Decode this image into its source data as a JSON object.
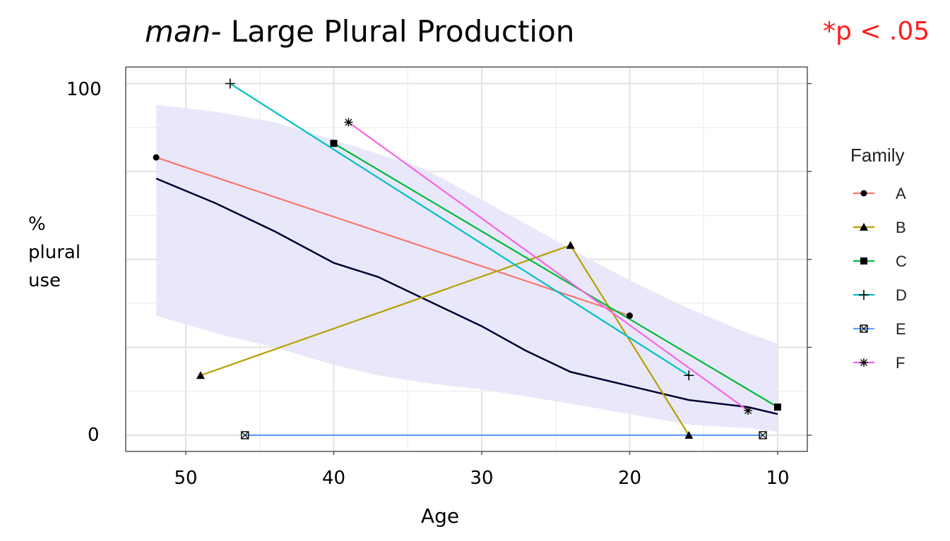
{
  "chart_data": {
    "type": "line",
    "title_italic": "man-",
    "title_rest": " Large Plural Production",
    "note": "*p < .05",
    "xlabel": "Age",
    "ylabel_lines": [
      "%",
      "plural",
      "use"
    ],
    "xlim": [
      54,
      8
    ],
    "ylim": [
      -5,
      105
    ],
    "x_ticks": [
      50,
      40,
      30,
      20,
      10
    ],
    "x_tick_labels": [
      "50",
      "40",
      "30",
      "20",
      "10"
    ],
    "y_tick_labels": [
      {
        "label": "100",
        "value": 100
      },
      {
        "label": "0",
        "value": 0
      }
    ],
    "y_grid_major": [
      0,
      25,
      50,
      75,
      100
    ],
    "y_grid_minor": [
      12.5,
      37.5,
      62.5,
      87.5
    ],
    "x_grid_minor": [
      45,
      35,
      25,
      15
    ],
    "grid": true,
    "legend": {
      "title": "Family",
      "placement": "right"
    },
    "series": [
      {
        "name": "A",
        "color": "#f8766d",
        "marker": "circle",
        "x": [
          52,
          20
        ],
        "y": [
          79,
          34
        ]
      },
      {
        "name": "B",
        "color": "#b79f00",
        "marker": "triangle",
        "x": [
          49,
          24,
          16
        ],
        "y": [
          17,
          54,
          0
        ]
      },
      {
        "name": "C",
        "color": "#00ba38",
        "marker": "square",
        "x": [
          40,
          10
        ],
        "y": [
          83,
          8
        ]
      },
      {
        "name": "D",
        "color": "#00bfc4",
        "marker": "plus",
        "x": [
          47,
          16
        ],
        "y": [
          100,
          17
        ]
      },
      {
        "name": "E",
        "color": "#619cff",
        "marker": "boxcross",
        "x": [
          46,
          11
        ],
        "y": [
          0,
          0
        ]
      },
      {
        "name": "F",
        "color": "#f564e3",
        "marker": "star",
        "x": [
          39,
          12
        ],
        "y": [
          89,
          7
        ]
      }
    ],
    "trend": {
      "color": "#000033",
      "x": [
        52,
        48,
        44,
        40,
        37,
        34,
        30,
        27,
        24,
        20,
        16,
        12,
        10
      ],
      "y": [
        73,
        66,
        58,
        49,
        45,
        39,
        31,
        24,
        18,
        14,
        10,
        8,
        6
      ],
      "ci_fill": "#e6e6fa",
      "ci_x": [
        52,
        48,
        44,
        40,
        37,
        34,
        30,
        27,
        24,
        20,
        16,
        12,
        10
      ],
      "ci_upper": [
        94,
        92,
        89,
        84,
        80,
        76,
        67,
        60,
        53,
        44,
        36,
        29,
        26
      ],
      "ci_lower": [
        34,
        29,
        25,
        20,
        17,
        15,
        13,
        11,
        9,
        6,
        3,
        2,
        1
      ]
    }
  }
}
